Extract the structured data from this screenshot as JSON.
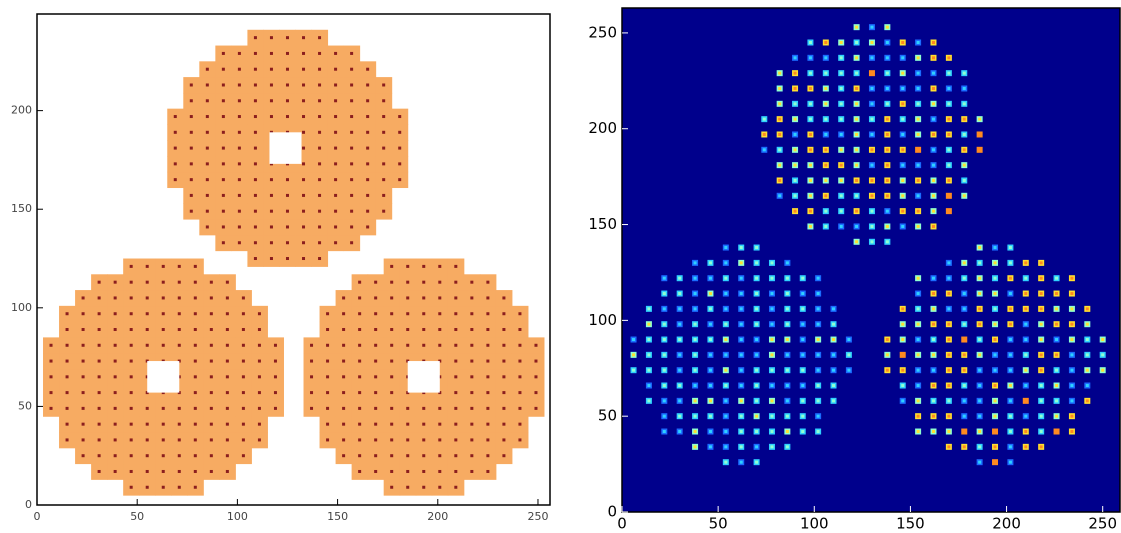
{
  "chart_data": [
    {
      "type": "image",
      "xlim": [
        0,
        256
      ],
      "ylim": [
        0,
        249
      ],
      "xticks": [
        0,
        50,
        100,
        150,
        200,
        250
      ],
      "yticks": [
        0,
        50,
        100,
        150,
        200
      ],
      "background": "#ffffff",
      "fill_color": "#f7ab62",
      "dot_color": "#8b1e1e",
      "circles": [
        {
          "x": 125,
          "y": 181,
          "r": 60
        },
        {
          "x": 63,
          "y": 65,
          "r": 60
        },
        {
          "x": 193,
          "y": 65,
          "r": 60
        }
      ],
      "holes": [
        {
          "x": 124,
          "y": 181
        },
        {
          "x": 63,
          "y": 65
        },
        {
          "x": 193,
          "y": 65
        }
      ]
    },
    {
      "type": "heatmap",
      "xlim": [
        0,
        259
      ],
      "ylim": [
        0,
        263
      ],
      "xticks": [
        0,
        50,
        100,
        150,
        200,
        250
      ],
      "yticks": [
        0,
        50,
        100,
        150,
        200,
        250
      ],
      "background": "#00008c",
      "spot_colors": [
        "#1a6cff",
        "#2fd0ff",
        "#8fffd0",
        "#ffe030",
        "#ff8a20"
      ],
      "circles": [
        {
          "x": 130,
          "y": 197,
          "r": 58
        },
        {
          "x": 62,
          "y": 82,
          "r": 57
        },
        {
          "x": 194,
          "y": 82,
          "r": 57
        }
      ]
    }
  ]
}
